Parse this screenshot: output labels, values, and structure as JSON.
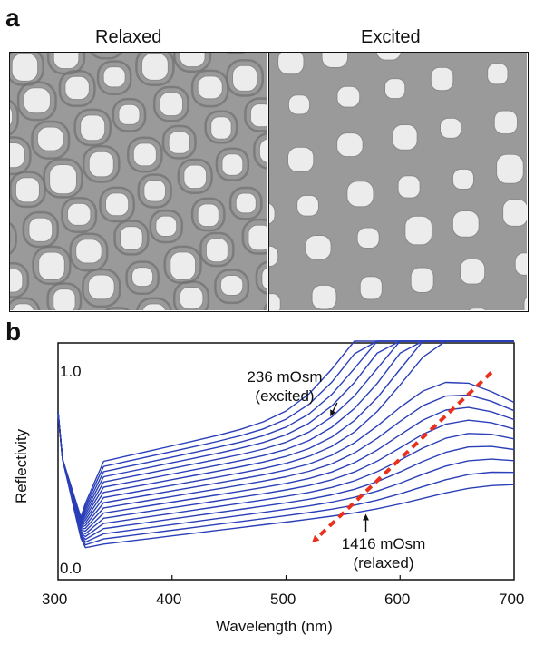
{
  "panel_a": {
    "label": "a",
    "left_title": "Relaxed",
    "right_title": "Excited",
    "background_color": "#9a9a9a",
    "pore_color": "#ececec",
    "rim_color": "#6f6f6f"
  },
  "panel_b": {
    "label": "b"
  },
  "chart_data": {
    "type": "line",
    "title": "",
    "xlabel": "Wavelength (nm)",
    "ylabel": "Reflectivity",
    "xlim": [
      300,
      700
    ],
    "ylim": [
      0.0,
      1.2
    ],
    "x_ticks": [
      "300",
      "400",
      "500",
      "600",
      "700"
    ],
    "y_ticks": [
      "1.0",
      "0.0"
    ],
    "series_color": "#2b3fb8",
    "num_series": 17,
    "x": [
      300,
      304,
      308,
      312,
      316,
      320,
      324,
      328,
      332,
      336,
      340,
      350,
      360,
      380,
      400,
      420,
      440,
      460,
      480,
      500,
      520,
      540,
      560,
      580,
      600,
      620,
      640,
      660,
      680,
      700
    ],
    "series_description": "17 reflectivity spectra measured at osmolarities from 236 mOsm (top, excited) to 1416 mOsm (bottom, relaxed); peak red-shifts as cells relax",
    "annotations": [
      {
        "line1": "236 mOsm",
        "line2": "(excited)",
        "target_x": 540
      },
      {
        "line1": "1416 mOsm",
        "line2": "(relaxed)",
        "target_x": 570
      }
    ],
    "arrow_color": "#e8301c",
    "arrow_from": [
      680,
      1.05
    ],
    "arrow_to": [
      525,
      0.2
    ]
  }
}
